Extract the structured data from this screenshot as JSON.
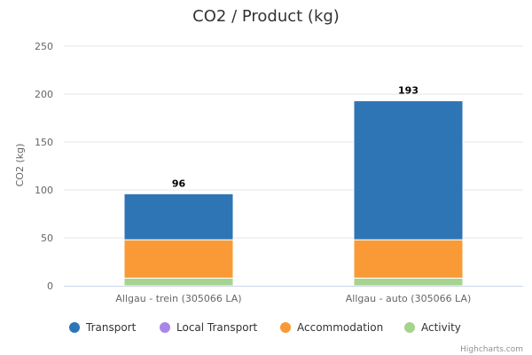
{
  "chart_data": {
    "type": "bar",
    "stacked": true,
    "title": "CO2 / Product (kg)",
    "ylabel": "CO2 (kg)",
    "xlabel": "",
    "ylim": [
      0,
      250
    ],
    "yticks": [
      0,
      50,
      100,
      150,
      200,
      250
    ],
    "grid": true,
    "legend_position": "bottom",
    "categories": [
      "Allgau - trein (305066 LA)",
      "Allgau - auto (305066 LA)"
    ],
    "series": [
      {
        "name": "Activity",
        "color": "#a6d38d",
        "values": [
          8,
          8
        ]
      },
      {
        "name": "Local Transport",
        "color": "#a987e6",
        "values": [
          0,
          0
        ]
      },
      {
        "name": "Accommodation",
        "color": "#f99a36",
        "values": [
          40,
          40
        ]
      },
      {
        "name": "Transport",
        "color": "#2e75b6",
        "values": [
          48,
          145
        ]
      }
    ],
    "totals": [
      "96",
      "193"
    ],
    "legend_order": [
      "Transport",
      "Local Transport",
      "Accommodation",
      "Activity"
    ],
    "credits": "Highcharts.com"
  }
}
